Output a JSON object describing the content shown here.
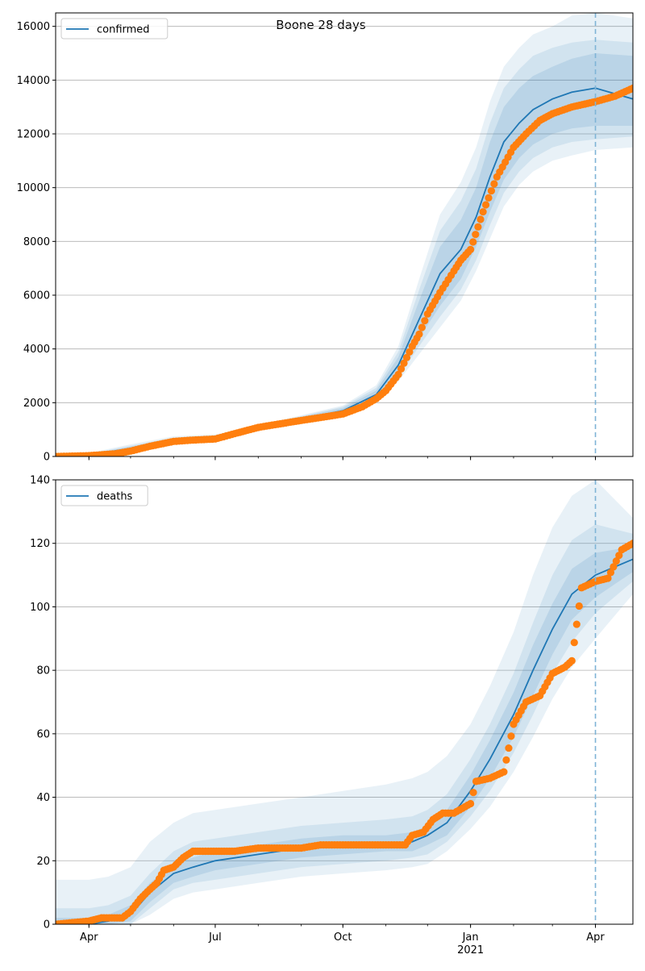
{
  "figure": {
    "title": "Boone 28 days"
  },
  "colors": {
    "model_line": "#1f77b4",
    "observed_points": "#ff7f0e",
    "band": "#1f77b4",
    "forecast_marker": "#7fb4d6",
    "grid": "#b0b0b0"
  },
  "chart_data": [
    {
      "type": "line",
      "name": "confirmed-panel",
      "legend": "confirmed",
      "legend_position": "top-left",
      "grid": "horizontal",
      "x_axis": "date",
      "xlim": [
        "2020-03-08",
        "2021-04-28"
      ],
      "ylim": [
        0,
        16500
      ],
      "yticks": [
        0,
        2000,
        4000,
        6000,
        8000,
        10000,
        12000,
        14000,
        16000
      ],
      "xticks": [
        {
          "date": "2020-04-01",
          "label": "Apr",
          "sub": ""
        },
        {
          "date": "2020-07-01",
          "label": "Jul",
          "sub": ""
        },
        {
          "date": "2020-10-01",
          "label": "Oct",
          "sub": ""
        },
        {
          "date": "2021-01-01",
          "label": "Jan",
          "sub": "2021"
        },
        {
          "date": "2021-04-01",
          "label": "Apr",
          "sub": ""
        }
      ],
      "forecast_start": "2021-04-01",
      "model": {
        "x": [
          "2020-03-08",
          "2020-04-01",
          "2020-05-01",
          "2020-06-01",
          "2020-07-01",
          "2020-08-01",
          "2020-09-01",
          "2020-10-01",
          "2020-10-25",
          "2020-11-10",
          "2020-11-25",
          "2020-12-10",
          "2020-12-25",
          "2021-01-05",
          "2021-01-15",
          "2021-01-25",
          "2021-02-05",
          "2021-02-15",
          "2021-03-01",
          "2021-03-15",
          "2021-04-01",
          "2021-04-28"
        ],
        "mean": [
          0,
          50,
          300,
          600,
          700,
          1050,
          1400,
          1700,
          2300,
          3400,
          5100,
          6800,
          7700,
          8900,
          10400,
          11700,
          12400,
          12900,
          13300,
          13550,
          13700,
          13300
        ],
        "bands": [
          {
            "lower": [
              0,
              20,
              250,
              550,
              650,
              1000,
              1330,
              1600,
              2150,
              3100,
              4400,
              5600,
              6600,
              7800,
              9100,
              10300,
              11100,
              11600,
              12000,
              12200,
              12300,
              12300
            ],
            "upper": [
              0,
              80,
              370,
              660,
              760,
              1100,
              1470,
              1800,
              2450,
              3700,
              5800,
              7800,
              8800,
              10000,
              11700,
              13000,
              13700,
              14150,
              14500,
              14800,
              15000,
              14900
            ]
          },
          {
            "lower": [
              0,
              10,
              220,
              510,
              620,
              980,
              1300,
              1560,
              2080,
              2950,
              4100,
              5200,
              6200,
              7300,
              8600,
              9800,
              10600,
              11100,
              11500,
              11700,
              11800,
              11900
            ],
            "upper": [
              0,
              100,
              400,
              700,
              790,
              1130,
              1500,
              1850,
              2550,
              3900,
              6200,
              8400,
              9500,
              10700,
              12400,
              13700,
              14400,
              14900,
              15200,
              15400,
              15500,
              15400
            ]
          },
          {
            "lower": [
              0,
              5,
              190,
              480,
              590,
              950,
              1270,
              1520,
              2000,
              2800,
              3800,
              4800,
              5800,
              6900,
              8100,
              9300,
              10100,
              10600,
              11000,
              11200,
              11400,
              11500
            ],
            "upper": [
              0,
              130,
              450,
              750,
              820,
              1160,
              1530,
              1900,
              2650,
              4100,
              6600,
              9000,
              10200,
              11500,
              13200,
              14500,
              15200,
              15700,
              16000,
              16400,
              16500,
              16300
            ]
          }
        ]
      },
      "observed": {
        "x": [
          "2020-03-08",
          "2020-04-01",
          "2020-04-20",
          "2020-05-01",
          "2020-05-15",
          "2020-06-01",
          "2020-06-15",
          "2020-07-01",
          "2020-07-15",
          "2020-08-01",
          "2020-08-15",
          "2020-09-01",
          "2020-09-15",
          "2020-10-01",
          "2020-10-15",
          "2020-10-25",
          "2020-11-01",
          "2020-11-10",
          "2020-11-20",
          "2020-11-25",
          "2020-12-01",
          "2020-12-10",
          "2020-12-20",
          "2020-12-25",
          "2021-01-01",
          "2021-01-10",
          "2021-01-20",
          "2021-02-01",
          "2021-02-10",
          "2021-02-20",
          "2021-03-01",
          "2021-03-15",
          "2021-04-01",
          "2021-04-15",
          "2021-04-28"
        ],
        "y": [
          0,
          30,
          100,
          200,
          380,
          560,
          610,
          650,
          850,
          1080,
          1200,
          1340,
          1450,
          1580,
          1850,
          2150,
          2450,
          3050,
          4100,
          4550,
          5300,
          6100,
          6900,
          7300,
          7700,
          9100,
          10400,
          11500,
          12000,
          12500,
          12750,
          13000,
          13200,
          13400,
          13700
        ]
      }
    },
    {
      "type": "line",
      "name": "deaths-panel",
      "legend": "deaths",
      "legend_position": "top-left",
      "grid": "horizontal",
      "x_axis": "date",
      "xlim": [
        "2020-03-08",
        "2021-04-28"
      ],
      "ylim": [
        0,
        140
      ],
      "yticks": [
        0,
        20,
        40,
        60,
        80,
        100,
        120,
        140
      ],
      "xticks": [
        {
          "date": "2020-04-01",
          "label": "Apr",
          "sub": ""
        },
        {
          "date": "2020-07-01",
          "label": "Jul",
          "sub": ""
        },
        {
          "date": "2020-10-01",
          "label": "Oct",
          "sub": ""
        },
        {
          "date": "2021-01-01",
          "label": "Jan",
          "sub": "2021"
        },
        {
          "date": "2021-04-01",
          "label": "Apr",
          "sub": ""
        }
      ],
      "forecast_start": "2021-04-01",
      "model": {
        "x": [
          "2020-03-08",
          "2020-04-01",
          "2020-04-15",
          "2020-05-01",
          "2020-05-15",
          "2020-06-01",
          "2020-06-15",
          "2020-07-01",
          "2020-08-01",
          "2020-09-01",
          "2020-10-01",
          "2020-11-01",
          "2020-11-20",
          "2020-12-01",
          "2020-12-15",
          "2021-01-01",
          "2021-01-15",
          "2021-02-01",
          "2021-02-15",
          "2021-03-01",
          "2021-03-15",
          "2021-04-01",
          "2021-04-28"
        ],
        "mean": [
          0,
          0,
          1,
          3,
          10,
          16,
          18,
          20,
          22,
          24,
          25,
          25,
          26,
          28,
          32,
          42,
          52,
          66,
          80,
          93,
          104,
          110,
          115
        ],
        "bands": [
          {
            "lower": [
              0,
              0,
              0,
              1,
              7,
              13,
              15,
              17,
              19,
              21,
              22,
              23,
              23,
              25,
              28,
              37,
              46,
              59,
              72,
              85,
              96,
              103,
              111
            ],
            "upper": [
              2,
              2,
              3,
              6,
              13,
              19,
              21,
              23,
              25,
              27,
              28,
              28,
              29,
              31,
              36,
              47,
              58,
              73,
              88,
              101,
              112,
              117,
              119
            ]
          },
          {
            "lower": [
              0,
              0,
              0,
              0,
              5,
              11,
              13,
              14,
              16,
              18,
              19,
              20,
              21,
              22,
              26,
              34,
              42,
              54,
              66,
              79,
              89,
              98,
              108
            ],
            "upper": [
              5,
              5,
              6,
              9,
              16,
              23,
              26,
              27,
              29,
              31,
              32,
              33,
              34,
              36,
              41,
              52,
              63,
              79,
              95,
              110,
              121,
              126,
              123
            ]
          },
          {
            "lower": [
              0,
              0,
              0,
              0,
              3,
              8,
              10,
              11,
              13,
              15,
              16,
              17,
              18,
              19,
              23,
              30,
              37,
              48,
              59,
              71,
              81,
              90,
              104
            ],
            "upper": [
              14,
              14,
              15,
              18,
              26,
              32,
              35,
              36,
              38,
              40,
              42,
              44,
              46,
              48,
              53,
              63,
              75,
              92,
              110,
              125,
              135,
              140,
              128
            ]
          }
        ]
      },
      "observed": {
        "x": [
          "2020-03-08",
          "2020-04-01",
          "2020-04-10",
          "2020-04-25",
          "2020-05-01",
          "2020-05-08",
          "2020-05-15",
          "2020-05-20",
          "2020-05-25",
          "2020-06-01",
          "2020-06-08",
          "2020-06-15",
          "2020-06-20",
          "2020-06-28",
          "2020-07-15",
          "2020-08-01",
          "2020-09-01",
          "2020-09-15",
          "2020-10-01",
          "2020-11-01",
          "2020-11-15",
          "2020-11-20",
          "2020-11-28",
          "2020-12-05",
          "2020-12-12",
          "2020-12-20",
          "2021-01-01",
          "2021-01-05",
          "2021-01-15",
          "2021-01-25",
          "2021-02-01",
          "2021-02-10",
          "2021-02-20",
          "2021-03-01",
          "2021-03-10",
          "2021-03-15",
          "2021-03-22",
          "2021-04-01",
          "2021-04-10",
          "2021-04-20",
          "2021-04-28"
        ],
        "y": [
          0,
          1,
          2,
          2,
          4,
          8,
          11,
          13,
          17,
          18,
          21,
          23,
          23,
          23,
          23,
          24,
          24,
          25,
          25,
          25,
          25,
          28,
          29,
          33,
          35,
          35,
          38,
          45,
          46,
          48,
          63,
          70,
          72,
          79,
          81,
          83,
          106,
          108,
          109,
          118,
          120
        ]
      }
    }
  ]
}
